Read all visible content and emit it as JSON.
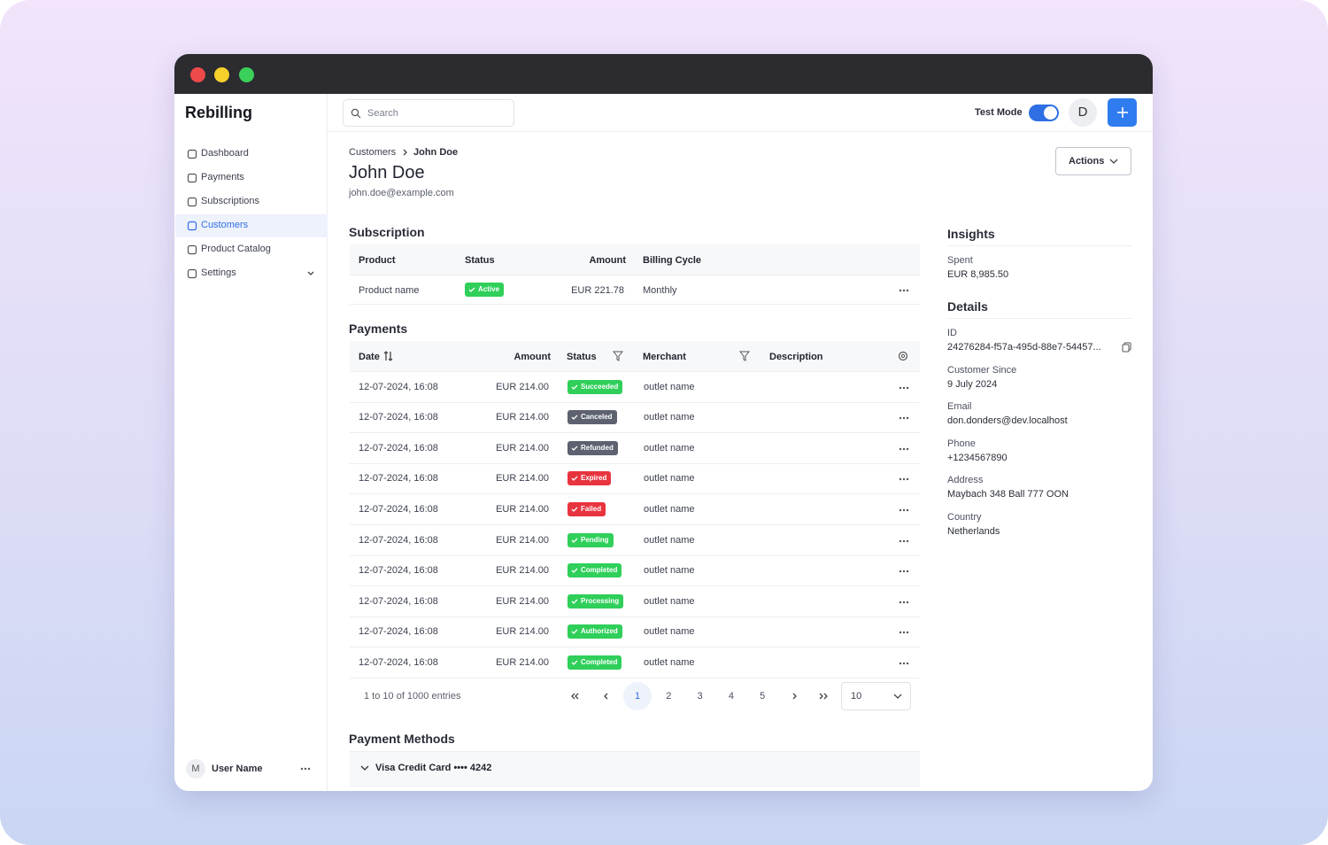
{
  "app": {
    "name": "Rebilling"
  },
  "sidebar": {
    "nav": [
      "Dashboard",
      "Payments",
      "Subscriptions",
      "Customers",
      "Product Catalog",
      "Settings"
    ],
    "user": {
      "initial": "M",
      "name": "User Name"
    }
  },
  "topbar": {
    "search_placeholder": "Search",
    "test_mode": "Test Mode",
    "avatar": "D"
  },
  "header": {
    "breadcrumb": [
      "Customers",
      "John Doe"
    ],
    "title": "John Doe",
    "email": "john.doe@example.com",
    "actions": "Actions"
  },
  "subscription": {
    "title": "Subscription",
    "columns": [
      "Product",
      "Status",
      "Amount",
      "Billing Cycle"
    ],
    "row": {
      "product": "Product name",
      "status": {
        "label": "Active",
        "color": "#2fcf5a"
      },
      "amount": "EUR 221.78",
      "cycle": "Monthly"
    }
  },
  "payments": {
    "title": "Payments",
    "columns": [
      "Date",
      "Amount",
      "Status",
      "Merchant",
      "Description"
    ],
    "rows": [
      {
        "date": "12-07-2024, 16:08",
        "amount": "EUR 214.00",
        "status": {
          "label": "Succeeded",
          "color": "#2fcf5a"
        },
        "merchant": "outlet name"
      },
      {
        "date": "12-07-2024, 16:08",
        "amount": "EUR 214.00",
        "status": {
          "label": "Canceled",
          "color": "#5d6170"
        },
        "merchant": "outlet name"
      },
      {
        "date": "12-07-2024, 16:08",
        "amount": "EUR 214.00",
        "status": {
          "label": "Refunded",
          "color": "#5d6170"
        },
        "merchant": "outlet name"
      },
      {
        "date": "12-07-2024, 16:08",
        "amount": "EUR 214.00",
        "status": {
          "label": "Expired",
          "color": "#e8343f"
        },
        "merchant": "outlet name"
      },
      {
        "date": "12-07-2024, 16:08",
        "amount": "EUR 214.00",
        "status": {
          "label": "Failed",
          "color": "#e8343f"
        },
        "merchant": "outlet name"
      },
      {
        "date": "12-07-2024, 16:08",
        "amount": "EUR 214.00",
        "status": {
          "label": "Pending",
          "color": "#2fcf5a"
        },
        "merchant": "outlet name"
      },
      {
        "date": "12-07-2024, 16:08",
        "amount": "EUR 214.00",
        "status": {
          "label": "Completed",
          "color": "#2fcf5a"
        },
        "merchant": "outlet name"
      },
      {
        "date": "12-07-2024, 16:08",
        "amount": "EUR 214.00",
        "status": {
          "label": "Processing",
          "color": "#2fcf5a"
        },
        "merchant": "outlet name"
      },
      {
        "date": "12-07-2024, 16:08",
        "amount": "EUR 214.00",
        "status": {
          "label": "Authorized",
          "color": "#2fcf5a"
        },
        "merchant": "outlet name"
      },
      {
        "date": "12-07-2024, 16:08",
        "amount": "EUR 214.00",
        "status": {
          "label": "Completed",
          "color": "#2fcf5a"
        },
        "merchant": "outlet name"
      }
    ],
    "summary": "1 to 10 of 1000 entries",
    "pages": [
      "1",
      "2",
      "3",
      "4",
      "5"
    ],
    "page_size": "10"
  },
  "payment_methods": {
    "title": "Payment Methods",
    "items": [
      "Visa Credit Card •••• 4242"
    ]
  },
  "insights": {
    "title": "Insights",
    "spent_label": "Spent",
    "spent": "EUR 8,985.50"
  },
  "details": {
    "title": "Details",
    "fields": [
      {
        "label": "ID",
        "value": "24276284-f57a-495d-88e7-54457..."
      },
      {
        "label": "Customer Since",
        "value": "9 July 2024"
      },
      {
        "label": "Email",
        "value": "don.donders@dev.localhost"
      },
      {
        "label": "Phone",
        "value": "+1234567890"
      },
      {
        "label": "Address",
        "value": "Maybach 348 Ball 777 OON"
      },
      {
        "label": "Country",
        "value": "Netherlands"
      }
    ]
  }
}
